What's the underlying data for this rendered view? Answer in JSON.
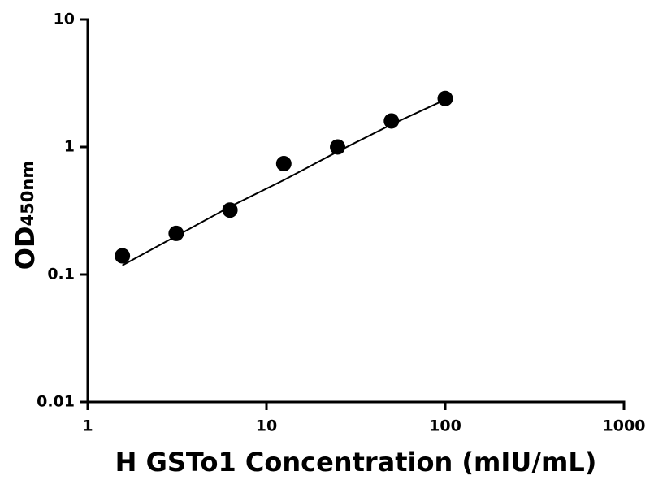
{
  "chart_data": {
    "type": "scatter",
    "x": [
      1.5625,
      3.125,
      6.25,
      12.5,
      25,
      50,
      100
    ],
    "values": [
      0.14,
      0.21,
      0.32,
      0.74,
      1.0,
      1.6,
      2.4
    ],
    "color": "#000000",
    "curve": {
      "x": [
        1.5625,
        3.125,
        6.25,
        12.5,
        25,
        50,
        100
      ],
      "values": [
        0.118,
        0.2,
        0.34,
        0.55,
        0.92,
        1.5,
        2.35
      ]
    },
    "xscale": "log",
    "yscale": "log",
    "xlim": [
      1,
      1000
    ],
    "ylim": [
      0.01,
      10
    ],
    "xticks": [
      1,
      10,
      100,
      1000
    ],
    "yticks": [
      0.01,
      0.1,
      1,
      10
    ],
    "xlabel": "H GSTo1 Concentration (mIU/mL)",
    "ylabel": "OD",
    "ylabel_subscript": "450nm"
  }
}
